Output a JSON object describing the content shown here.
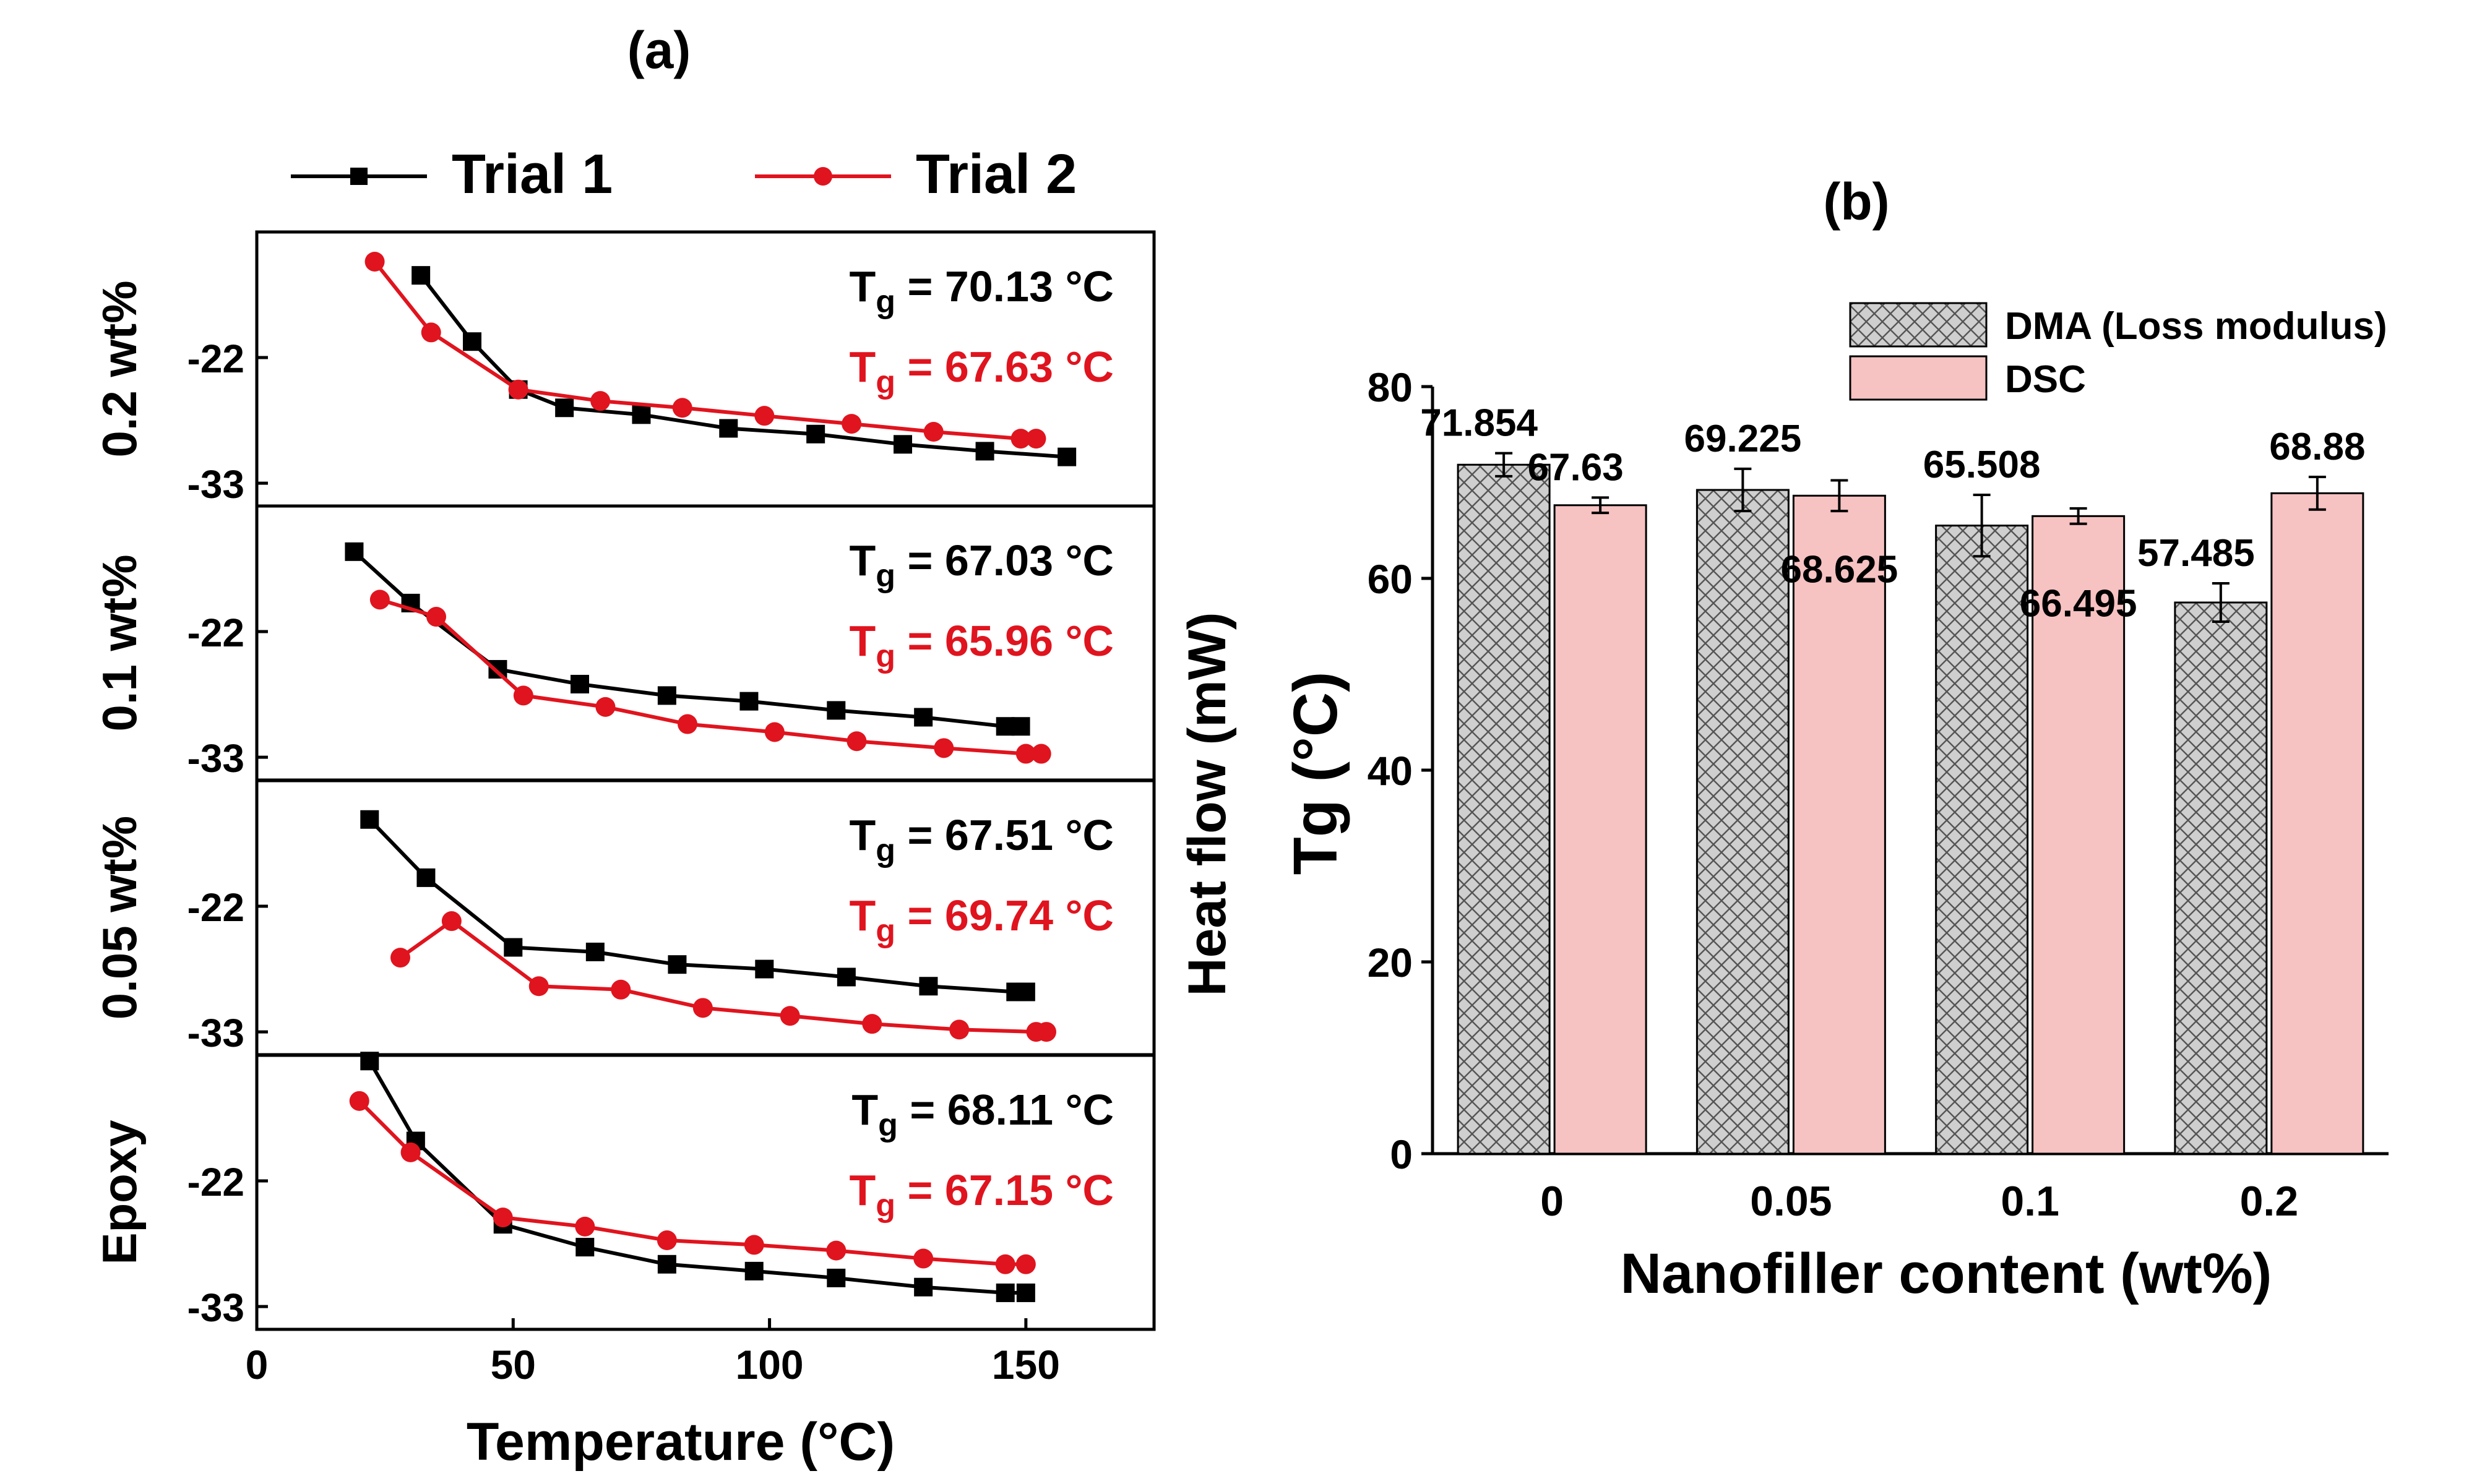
{
  "chart_data": [
    {
      "panel_label": "(a)",
      "type": "line",
      "xlabel": "Temperature (°C)",
      "ylabel": "Heat flow (mW)",
      "xlim": [
        0,
        175
      ],
      "x_ticks": [
        "0",
        "50",
        "100",
        "150"
      ],
      "x_tick_values": [
        0,
        50,
        100,
        150
      ],
      "legend": [
        {
          "name": "Trial 1",
          "color": "#000000",
          "marker": "square"
        },
        {
          "name": "Trial 2",
          "color": "#e0141e",
          "marker": "circle"
        }
      ],
      "legend_position": "top",
      "sub_panels": [
        {
          "name": "0.2 wt%",
          "ylim": [
            -35,
            -11
          ],
          "y_ticks": [
            "-22",
            "-33"
          ],
          "y_tick_values": [
            -22,
            -33
          ],
          "annotations": [
            {
              "sub": "g",
              "value": "= 70.13 °C",
              "color": "#000000"
            },
            {
              "sub": "g",
              "value": "= 67.63 °C",
              "color": "#e0141e"
            }
          ],
          "series": [
            {
              "name": "Trial 1",
              "x": [
                32,
                42,
                51,
                60,
                75,
                92,
                109,
                126,
                142,
                158
              ],
              "y": [
                -14.8,
                -20.6,
                -24.8,
                -26.4,
                -27.0,
                -28.2,
                -28.7,
                -29.6,
                -30.2,
                -30.7
              ]
            },
            {
              "name": "Trial 2",
              "x": [
                23,
                34,
                51,
                67,
                83,
                99,
                116,
                132,
                149,
                152
              ],
              "y": [
                -13.6,
                -19.8,
                -24.8,
                -25.8,
                -26.4,
                -27.1,
                -27.8,
                -28.5,
                -29.1,
                -29.1
              ]
            }
          ]
        },
        {
          "name": "0.1 wt%",
          "ylim": [
            -35,
            -11
          ],
          "y_ticks": [
            "-22",
            "-33"
          ],
          "y_tick_values": [
            -22,
            -33
          ],
          "annotations": [
            {
              "sub": "g",
              "value": "= 67.03 °C",
              "color": "#000000"
            },
            {
              "sub": "g",
              "value": "= 65.96 °C",
              "color": "#e0141e"
            }
          ],
          "series": [
            {
              "name": "Trial 1",
              "x": [
                19,
                30,
                47,
                63,
                80,
                96,
                113,
                130,
                146,
                149
              ],
              "y": [
                -15.0,
                -19.5,
                -25.3,
                -26.6,
                -27.6,
                -28.1,
                -28.9,
                -29.5,
                -30.3,
                -30.3
              ]
            },
            {
              "name": "Trial 2",
              "x": [
                24,
                35,
                52,
                68,
                84,
                101,
                117,
                134,
                150,
                153
              ],
              "y": [
                -19.2,
                -20.7,
                -27.6,
                -28.6,
                -30.1,
                -30.8,
                -31.6,
                -32.2,
                -32.7,
                -32.7
              ]
            }
          ]
        },
        {
          "name": "0.05 wt%",
          "ylim": [
            -35,
            -11
          ],
          "y_ticks": [
            "-22",
            "-33"
          ],
          "y_tick_values": [
            -22,
            -33
          ],
          "annotations": [
            {
              "sub": "g",
              "value": "= 67.51 °C",
              "color": "#000000"
            },
            {
              "sub": "g",
              "value": "= 69.74 °C",
              "color": "#e0141e"
            }
          ],
          "series": [
            {
              "name": "Trial 1",
              "x": [
                22,
                33,
                50,
                66,
                82,
                99,
                115,
                131,
                148,
                150
              ],
              "y": [
                -14.4,
                -19.5,
                -25.6,
                -26.0,
                -27.1,
                -27.5,
                -28.2,
                -29.0,
                -29.5,
                -29.5
              ]
            },
            {
              "name": "Trial 2",
              "x": [
                28,
                38,
                55,
                71,
                87,
                104,
                120,
                137,
                152,
                154
              ],
              "y": [
                -26.5,
                -23.3,
                -29.0,
                -29.3,
                -30.9,
                -31.6,
                -32.3,
                -32.8,
                -33.0,
                -33.0
              ]
            }
          ]
        },
        {
          "name": "Epoxy",
          "ylim": [
            -35,
            -11
          ],
          "y_ticks": [
            "-22",
            "-33"
          ],
          "y_tick_values": [
            -22,
            -33
          ],
          "annotations": [
            {
              "sub": "g",
              "value": "= 68.11 °C",
              "color": "#000000"
            },
            {
              "sub": "g",
              "value": "= 67.15 °C",
              "color": "#e0141e"
            }
          ],
          "series": [
            {
              "name": "Trial 1",
              "x": [
                22,
                31,
                48,
                64,
                80,
                97,
                113,
                130,
                146,
                150
              ],
              "y": [
                -11.5,
                -18.5,
                -25.8,
                -27.8,
                -29.3,
                -29.9,
                -30.5,
                -31.3,
                -31.8,
                -31.8
              ]
            },
            {
              "name": "Trial 2",
              "x": [
                20,
                30,
                48,
                64,
                80,
                97,
                113,
                130,
                146,
                150
              ],
              "y": [
                -15.0,
                -19.5,
                -25.2,
                -26.0,
                -27.2,
                -27.6,
                -28.1,
                -28.8,
                -29.3,
                -29.3
              ]
            }
          ]
        }
      ]
    },
    {
      "panel_label": "(b)",
      "type": "bar",
      "xlabel": "Nanofiller content (wt%)",
      "ylabel": "Tg (°C)",
      "ylim": [
        0,
        80
      ],
      "y_ticks": [
        "0",
        "20",
        "40",
        "60",
        "80"
      ],
      "y_tick_values": [
        0,
        20,
        40,
        60,
        80
      ],
      "categories": [
        "0",
        "0.05",
        "0.1",
        "0.2"
      ],
      "legend_position": "top-right",
      "series": [
        {
          "name": "DMA (Loss modulus)",
          "color": "#c8c8c8",
          "pattern": "crosshatch",
          "values": [
            71.854,
            69.225,
            65.508,
            57.485
          ],
          "labels": [
            "71.854",
            "69.225",
            "65.508",
            "57.485"
          ],
          "errors": [
            1.2,
            2.2,
            3.2,
            2.0
          ]
        },
        {
          "name": "DSC",
          "color": "#f7c2c2",
          "pattern": "solid",
          "values": [
            67.63,
            68.625,
            66.495,
            68.88
          ],
          "labels": [
            "67.63",
            "68.625",
            "66.495",
            "68.88"
          ],
          "errors": [
            0.8,
            1.6,
            0.8,
            1.7
          ]
        }
      ]
    }
  ]
}
